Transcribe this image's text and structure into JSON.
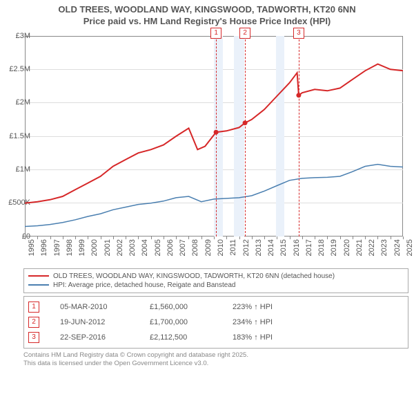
{
  "title_line1": "OLD TREES, WOODLAND WAY, KINGSWOOD, TADWORTH, KT20 6NN",
  "title_line2": "Price paid vs. HM Land Registry's House Price Index (HPI)",
  "chart": {
    "type": "line",
    "background_color": "#ffffff",
    "grid_color": "#dddddd",
    "border_color": "#888888",
    "y": {
      "min": 0,
      "max": 3000000,
      "ticks": [
        {
          "v": 0,
          "label": "£0"
        },
        {
          "v": 500000,
          "label": "£500K"
        },
        {
          "v": 1000000,
          "label": "£1M"
        },
        {
          "v": 1500000,
          "label": "£1.5M"
        },
        {
          "v": 2000000,
          "label": "£2M"
        },
        {
          "v": 2500000,
          "label": "£2.5M"
        },
        {
          "v": 3000000,
          "label": "£3M"
        }
      ],
      "label_color": "#555555",
      "label_fontsize": 11
    },
    "x": {
      "min": 1995,
      "max": 2025,
      "ticks": [
        1995,
        1996,
        1997,
        1998,
        1999,
        2000,
        2001,
        2002,
        2003,
        2004,
        2005,
        2006,
        2007,
        2008,
        2009,
        2010,
        2011,
        2012,
        2013,
        2014,
        2015,
        2016,
        2017,
        2018,
        2019,
        2020,
        2021,
        2022,
        2023,
        2024,
        2025
      ],
      "label_color": "#555555",
      "label_fontsize": 11
    },
    "shaded_bands": [
      {
        "from": 2010.0,
        "to": 2010.7,
        "color": "#eaf1fa"
      },
      {
        "from": 2011.6,
        "to": 2012.4,
        "color": "#eaf1fa"
      },
      {
        "from": 2014.9,
        "to": 2015.6,
        "color": "#eaf1fa"
      }
    ],
    "markers": [
      {
        "n": "1",
        "x": 2010.17,
        "color": "#d62728"
      },
      {
        "n": "2",
        "x": 2012.47,
        "color": "#d62728"
      },
      {
        "n": "3",
        "x": 2016.73,
        "color": "#d62728"
      }
    ],
    "series": [
      {
        "name": "OLD TREES, WOODLAND WAY, KINGSWOOD, TADWORTH, KT20 6NN (detached house)",
        "color": "#d62728",
        "line_width": 2,
        "data": [
          [
            1995,
            500000
          ],
          [
            1996,
            520000
          ],
          [
            1997,
            550000
          ],
          [
            1998,
            600000
          ],
          [
            1999,
            700000
          ],
          [
            2000,
            800000
          ],
          [
            2001,
            900000
          ],
          [
            2002,
            1050000
          ],
          [
            2003,
            1150000
          ],
          [
            2004,
            1250000
          ],
          [
            2005,
            1300000
          ],
          [
            2006,
            1370000
          ],
          [
            2007,
            1500000
          ],
          [
            2008,
            1620000
          ],
          [
            2008.7,
            1300000
          ],
          [
            2009.3,
            1350000
          ],
          [
            2010.17,
            1560000
          ],
          [
            2011,
            1580000
          ],
          [
            2012,
            1630000
          ],
          [
            2012.47,
            1700000
          ],
          [
            2013,
            1750000
          ],
          [
            2014,
            1900000
          ],
          [
            2015,
            2100000
          ],
          [
            2016,
            2300000
          ],
          [
            2016.6,
            2450000
          ],
          [
            2016.73,
            2112500
          ],
          [
            2017,
            2150000
          ],
          [
            2018,
            2200000
          ],
          [
            2019,
            2180000
          ],
          [
            2020,
            2220000
          ],
          [
            2021,
            2350000
          ],
          [
            2022,
            2480000
          ],
          [
            2023,
            2580000
          ],
          [
            2024,
            2500000
          ],
          [
            2025,
            2480000
          ]
        ]
      },
      {
        "name": "HPI: Average price, detached house, Reigate and Banstead",
        "color": "#4a7fb0",
        "line_width": 1.5,
        "data": [
          [
            1995,
            150000
          ],
          [
            1996,
            160000
          ],
          [
            1997,
            180000
          ],
          [
            1998,
            210000
          ],
          [
            1999,
            250000
          ],
          [
            2000,
            300000
          ],
          [
            2001,
            340000
          ],
          [
            2002,
            400000
          ],
          [
            2003,
            440000
          ],
          [
            2004,
            480000
          ],
          [
            2005,
            500000
          ],
          [
            2006,
            530000
          ],
          [
            2007,
            580000
          ],
          [
            2008,
            600000
          ],
          [
            2009,
            520000
          ],
          [
            2010,
            560000
          ],
          [
            2011,
            570000
          ],
          [
            2012,
            580000
          ],
          [
            2013,
            610000
          ],
          [
            2014,
            680000
          ],
          [
            2015,
            760000
          ],
          [
            2016,
            840000
          ],
          [
            2017,
            870000
          ],
          [
            2018,
            880000
          ],
          [
            2019,
            885000
          ],
          [
            2020,
            900000
          ],
          [
            2021,
            970000
          ],
          [
            2022,
            1050000
          ],
          [
            2023,
            1080000
          ],
          [
            2024,
            1050000
          ],
          [
            2025,
            1040000
          ]
        ]
      }
    ]
  },
  "legend": {
    "items": [
      {
        "color": "#d62728",
        "label": "OLD TREES, WOODLAND WAY, KINGSWOOD, TADWORTH, KT20 6NN (detached house)"
      },
      {
        "color": "#4a7fb0",
        "label": "HPI: Average price, detached house, Reigate and Banstead"
      }
    ]
  },
  "sales": [
    {
      "n": "1",
      "color": "#d62728",
      "date": "05-MAR-2010",
      "price": "£1,560,000",
      "pct": "223% ↑ HPI"
    },
    {
      "n": "2",
      "color": "#d62728",
      "date": "19-JUN-2012",
      "price": "£1,700,000",
      "pct": "234% ↑ HPI"
    },
    {
      "n": "3",
      "color": "#d62728",
      "date": "22-SEP-2016",
      "price": "£2,112,500",
      "pct": "183% ↑ HPI"
    }
  ],
  "footer_line1": "Contains HM Land Registry data © Crown copyright and database right 2025.",
  "footer_line2": "This data is licensed under the Open Government Licence v3.0."
}
